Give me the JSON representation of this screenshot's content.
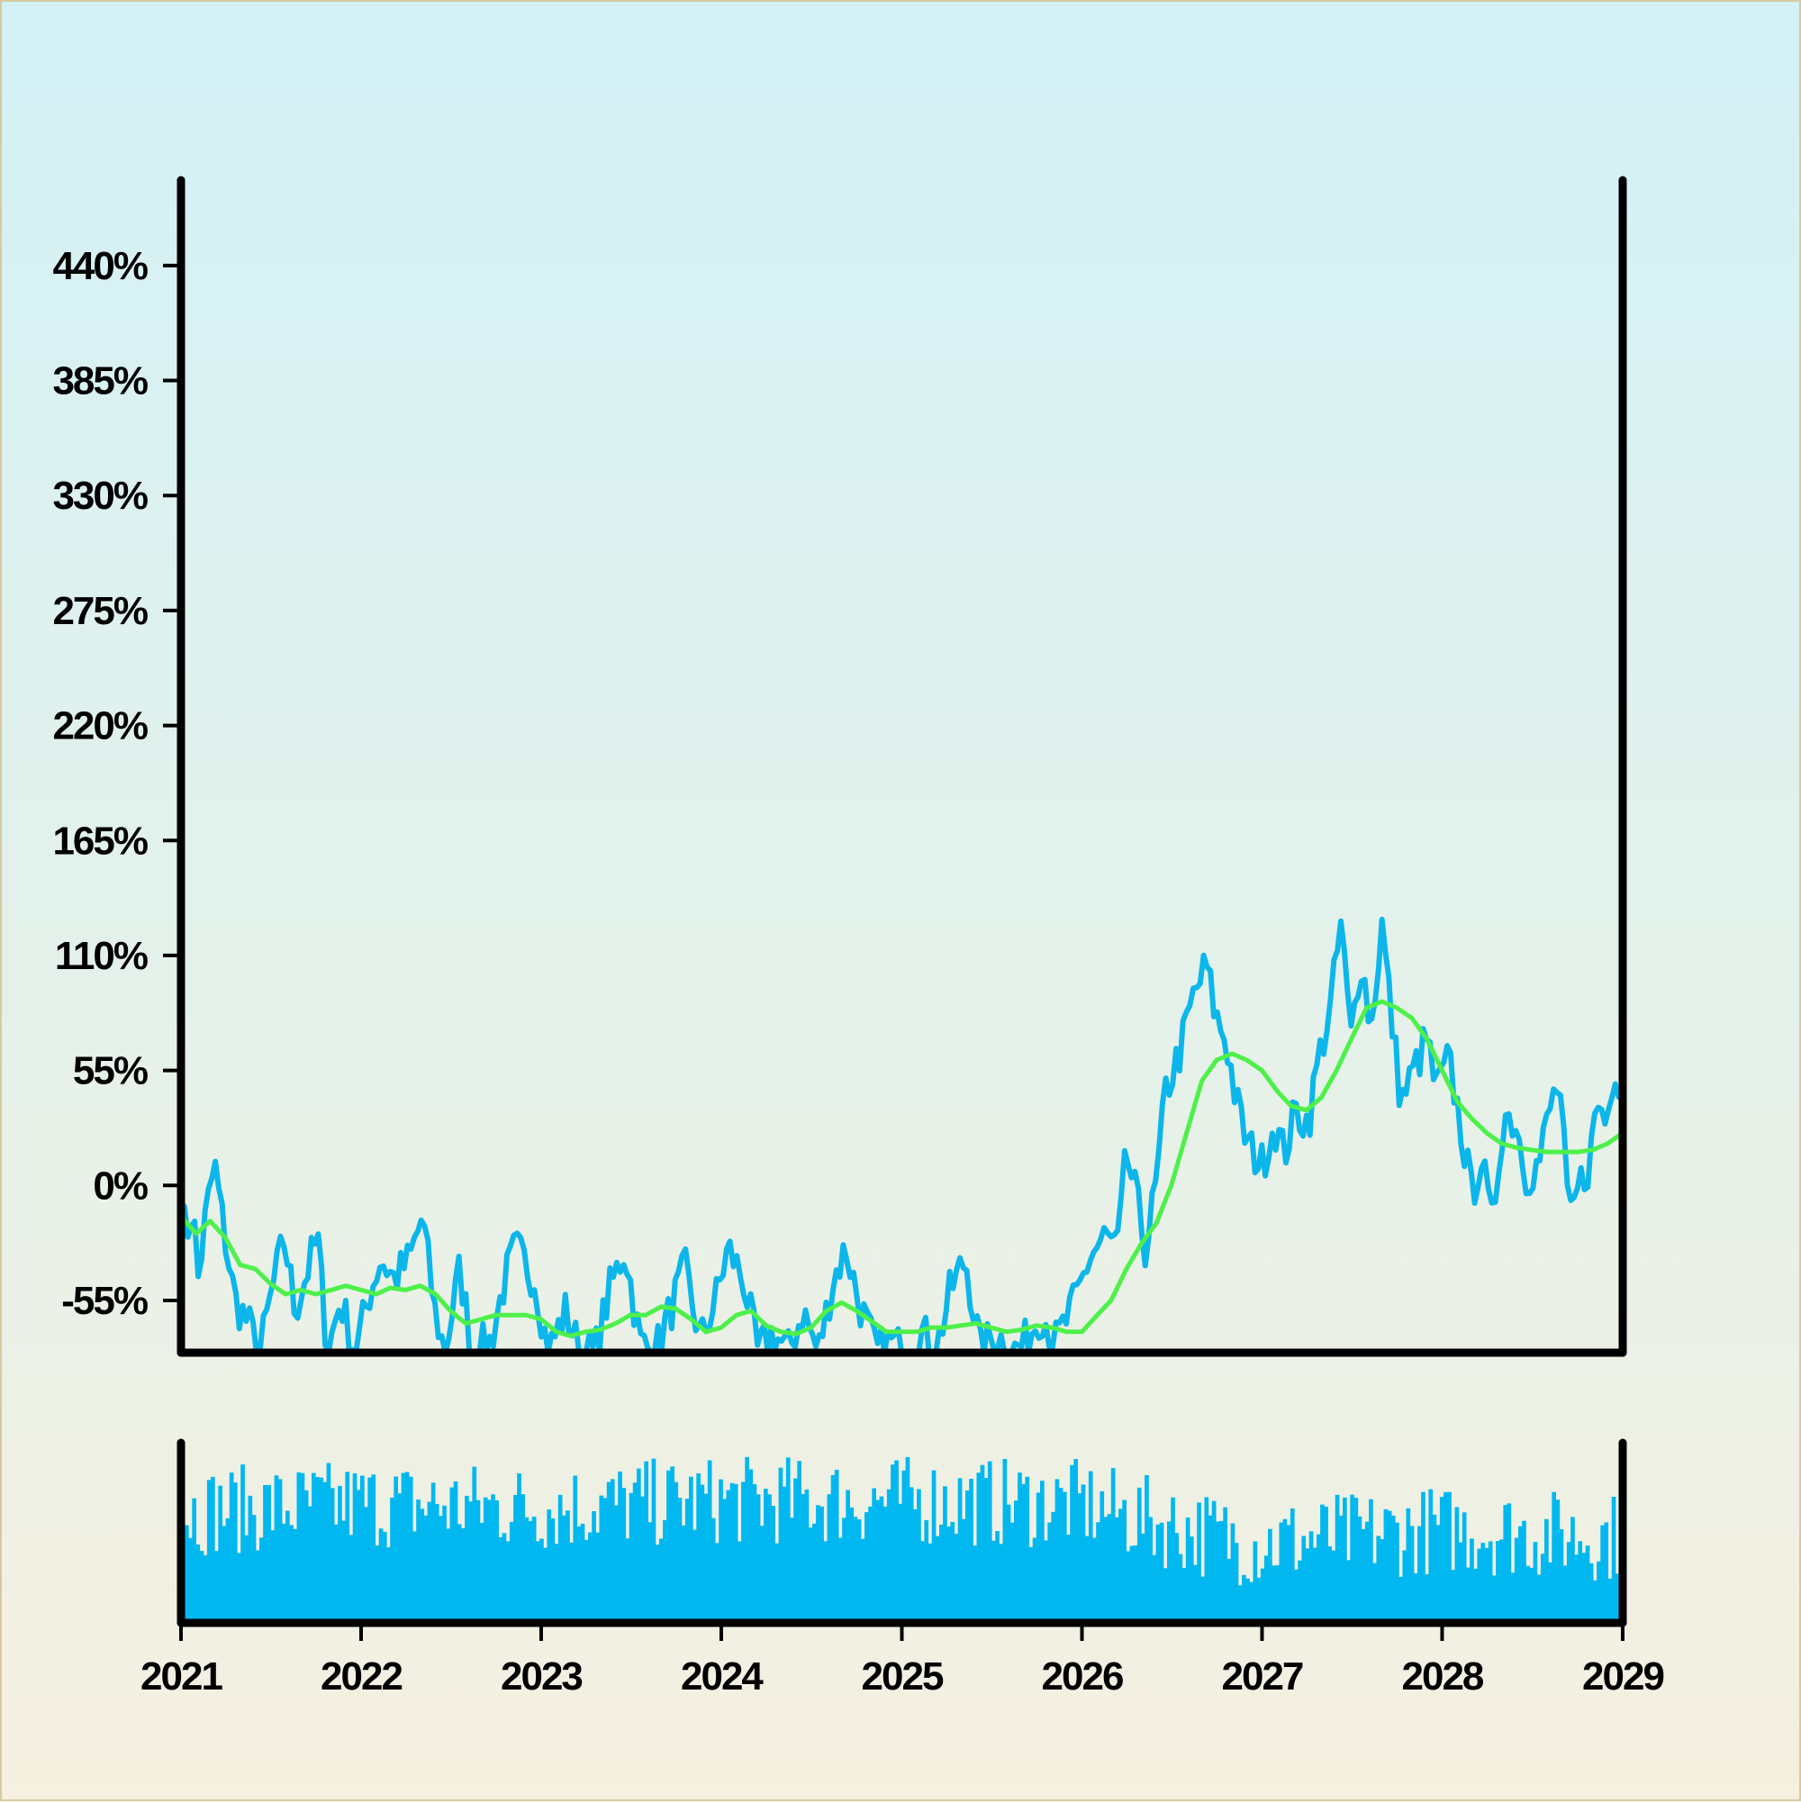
{
  "chart_data": {
    "type": "line",
    "title": "",
    "xlabel": "",
    "ylabel": "",
    "x_range": [
      "2021-01-01",
      "2029-01-01"
    ],
    "xticks": [
      "2021",
      "2022",
      "2023",
      "2024",
      "2025",
      "2026",
      "2027",
      "2028",
      "2029"
    ],
    "ylim": [
      -80,
      480
    ],
    "yticks": [
      -55,
      0,
      55,
      110,
      165,
      220,
      275,
      330,
      385,
      440
    ],
    "ytick_labels": [
      "-55%",
      "0%",
      "55%",
      "110%",
      "165%",
      "220%",
      "275%",
      "330%",
      "385%",
      "440%"
    ],
    "grid": false,
    "legend": "none",
    "colors": {
      "price": "#0cb6ea",
      "moving_average": "#4ef04a",
      "volume": "#00b8ef",
      "axes": "#000000"
    },
    "series": [
      {
        "role": "price",
        "keypoints": [
          [
            "2021-01-01",
            0
          ],
          [
            "2021-01-10",
            -25
          ],
          [
            "2021-01-25",
            -10
          ],
          [
            "2021-02-05",
            -45
          ],
          [
            "2021-02-20",
            -15
          ],
          [
            "2021-03-10",
            10
          ],
          [
            "2021-03-25",
            -15
          ],
          [
            "2021-04-20",
            -55
          ],
          [
            "2021-05-15",
            -65
          ],
          [
            "2021-06-10",
            -80
          ],
          [
            "2021-07-05",
            -50
          ],
          [
            "2021-07-30",
            -25
          ],
          [
            "2021-08-20",
            -60
          ],
          [
            "2021-09-15",
            -40
          ],
          [
            "2021-10-05",
            -25
          ],
          [
            "2021-10-25",
            -80
          ],
          [
            "2021-11-20",
            -55
          ],
          [
            "2021-12-20",
            -80
          ],
          [
            "2022-01-20",
            -50
          ],
          [
            "2022-02-10",
            -35
          ],
          [
            "2022-03-10",
            -45
          ],
          [
            "2022-04-10",
            -35
          ],
          [
            "2022-05-05",
            -15
          ],
          [
            "2022-05-30",
            -60
          ],
          [
            "2022-06-20",
            -80
          ],
          [
            "2022-07-20",
            -40
          ],
          [
            "2022-08-15",
            -80
          ],
          [
            "2022-09-20",
            -75
          ],
          [
            "2022-10-20",
            -45
          ],
          [
            "2022-11-10",
            -30
          ],
          [
            "2022-12-20",
            -45
          ],
          [
            "2023-01-15",
            -80
          ],
          [
            "2023-02-20",
            -60
          ],
          [
            "2023-03-20",
            -80
          ],
          [
            "2023-04-20",
            -80
          ],
          [
            "2023-05-20",
            -50
          ],
          [
            "2023-06-20",
            -30
          ],
          [
            "2023-07-20",
            -75
          ],
          [
            "2023-08-20",
            -80
          ],
          [
            "2023-09-20",
            -60
          ],
          [
            "2023-10-20",
            -40
          ],
          [
            "2023-11-20",
            -75
          ],
          [
            "2023-12-20",
            -55
          ],
          [
            "2024-01-15",
            -30
          ],
          [
            "2024-02-15",
            -45
          ],
          [
            "2024-03-15",
            -80
          ],
          [
            "2024-04-15",
            -70
          ],
          [
            "2024-05-15",
            -80
          ],
          [
            "2024-06-15",
            -60
          ],
          [
            "2024-07-15",
            -80
          ],
          [
            "2024-08-15",
            -45
          ],
          [
            "2024-09-10",
            -30
          ],
          [
            "2024-10-05",
            -55
          ],
          [
            "2024-11-10",
            -80
          ],
          [
            "2024-12-10",
            -75
          ],
          [
            "2025-01-10",
            -80
          ],
          [
            "2025-02-10",
            -70
          ],
          [
            "2025-03-10",
            -80
          ],
          [
            "2025-04-10",
            -50
          ],
          [
            "2025-05-10",
            -35
          ],
          [
            "2025-06-10",
            -80
          ],
          [
            "2025-07-10",
            -70
          ],
          [
            "2025-08-10",
            -80
          ],
          [
            "2025-09-10",
            -75
          ],
          [
            "2025-10-10",
            -60
          ],
          [
            "2025-11-10",
            -75
          ],
          [
            "2025-12-20",
            -55
          ],
          [
            "2026-01-15",
            -35
          ],
          [
            "2026-02-15",
            -25
          ],
          [
            "2026-03-15",
            -30
          ],
          [
            "2026-04-01",
            15
          ],
          [
            "2026-04-20",
            -5
          ],
          [
            "2026-05-10",
            -30
          ],
          [
            "2026-06-01",
            0
          ],
          [
            "2026-06-20",
            45
          ],
          [
            "2026-07-20",
            65
          ],
          [
            "2026-08-15",
            90
          ],
          [
            "2026-09-10",
            105
          ],
          [
            "2026-09-30",
            80
          ],
          [
            "2026-10-20",
            70
          ],
          [
            "2026-11-10",
            40
          ],
          [
            "2026-12-01",
            20
          ],
          [
            "2027-01-01",
            10
          ],
          [
            "2027-01-25",
            30
          ],
          [
            "2027-02-15",
            15
          ],
          [
            "2027-03-10",
            35
          ],
          [
            "2027-04-05",
            30
          ],
          [
            "2027-04-25",
            60
          ],
          [
            "2027-05-20",
            85
          ],
          [
            "2027-06-10",
            125
          ],
          [
            "2027-06-30",
            70
          ],
          [
            "2027-07-20",
            110
          ],
          [
            "2027-08-10",
            75
          ],
          [
            "2027-09-01",
            125
          ],
          [
            "2027-09-25",
            70
          ],
          [
            "2027-10-10",
            40
          ],
          [
            "2027-11-05",
            55
          ],
          [
            "2027-12-01",
            70
          ],
          [
            "2027-12-20",
            45
          ],
          [
            "2028-01-15",
            60
          ],
          [
            "2028-02-10",
            25
          ],
          [
            "2028-03-01",
            -5
          ],
          [
            "2028-03-20",
            15
          ],
          [
            "2028-04-10",
            -20
          ],
          [
            "2028-05-05",
            35
          ],
          [
            "2028-05-30",
            30
          ],
          [
            "2028-06-20",
            5
          ],
          [
            "2028-07-15",
            10
          ],
          [
            "2028-08-05",
            35
          ],
          [
            "2028-08-25",
            50
          ],
          [
            "2028-09-15",
            -20
          ],
          [
            "2028-10-05",
            0
          ],
          [
            "2028-10-25",
            10
          ],
          [
            "2028-11-10",
            40
          ],
          [
            "2028-11-30",
            30
          ],
          [
            "2028-12-15",
            60
          ],
          [
            "2028-12-31",
            45
          ]
        ]
      },
      {
        "role": "moving_average",
        "keypoints": [
          [
            "2021-01-01",
            -15
          ],
          [
            "2021-02-01",
            -23
          ],
          [
            "2021-03-01",
            -17
          ],
          [
            "2021-04-01",
            -25
          ],
          [
            "2021-05-01",
            -38
          ],
          [
            "2021-06-01",
            -40
          ],
          [
            "2021-07-01",
            -47
          ],
          [
            "2021-08-01",
            -52
          ],
          [
            "2021-09-01",
            -50
          ],
          [
            "2021-10-01",
            -52
          ],
          [
            "2021-11-01",
            -50
          ],
          [
            "2021-12-01",
            -48
          ],
          [
            "2022-01-01",
            -50
          ],
          [
            "2022-02-01",
            -52
          ],
          [
            "2022-03-01",
            -49
          ],
          [
            "2022-04-01",
            -50
          ],
          [
            "2022-05-01",
            -48
          ],
          [
            "2022-06-01",
            -52
          ],
          [
            "2022-07-01",
            -60
          ],
          [
            "2022-08-01",
            -66
          ],
          [
            "2022-09-01",
            -64
          ],
          [
            "2022-10-01",
            -62
          ],
          [
            "2022-11-01",
            -62
          ],
          [
            "2022-12-01",
            -62
          ],
          [
            "2023-01-01",
            -64
          ],
          [
            "2023-02-01",
            -70
          ],
          [
            "2023-03-01",
            -72
          ],
          [
            "2023-04-01",
            -70
          ],
          [
            "2023-05-01",
            -69
          ],
          [
            "2023-06-01",
            -66
          ],
          [
            "2023-07-01",
            -62
          ],
          [
            "2023-08-01",
            -62
          ],
          [
            "2023-09-01",
            -58
          ],
          [
            "2023-10-01",
            -59
          ],
          [
            "2023-11-01",
            -64
          ],
          [
            "2023-12-01",
            -70
          ],
          [
            "2024-01-01",
            -68
          ],
          [
            "2024-02-01",
            -62
          ],
          [
            "2024-03-01",
            -60
          ],
          [
            "2024-04-01",
            -67
          ],
          [
            "2024-05-01",
            -70
          ],
          [
            "2024-06-01",
            -71
          ],
          [
            "2024-07-01",
            -68
          ],
          [
            "2024-08-01",
            -60
          ],
          [
            "2024-09-01",
            -56
          ],
          [
            "2024-10-01",
            -60
          ],
          [
            "2024-11-01",
            -65
          ],
          [
            "2024-12-01",
            -70
          ],
          [
            "2025-01-01",
            -70
          ],
          [
            "2025-02-01",
            -70
          ],
          [
            "2025-03-01",
            -68
          ],
          [
            "2025-04-01",
            -68
          ],
          [
            "2025-05-01",
            -67
          ],
          [
            "2025-06-01",
            -66
          ],
          [
            "2025-07-01",
            -68
          ],
          [
            "2025-08-01",
            -70
          ],
          [
            "2025-09-01",
            -69
          ],
          [
            "2025-10-01",
            -67
          ],
          [
            "2025-11-01",
            -68
          ],
          [
            "2025-12-01",
            -70
          ],
          [
            "2026-01-01",
            -70
          ],
          [
            "2026-02-01",
            -62
          ],
          [
            "2026-03-01",
            -55
          ],
          [
            "2026-04-01",
            -40
          ],
          [
            "2026-05-01",
            -28
          ],
          [
            "2026-06-01",
            -18
          ],
          [
            "2026-07-01",
            0
          ],
          [
            "2026-08-01",
            25
          ],
          [
            "2026-09-01",
            50
          ],
          [
            "2026-10-01",
            60
          ],
          [
            "2026-11-01",
            63
          ],
          [
            "2026-12-01",
            60
          ],
          [
            "2027-01-01",
            55
          ],
          [
            "2027-02-01",
            45
          ],
          [
            "2027-03-01",
            38
          ],
          [
            "2027-04-01",
            36
          ],
          [
            "2027-05-01",
            42
          ],
          [
            "2027-06-01",
            55
          ],
          [
            "2027-07-01",
            70
          ],
          [
            "2027-08-01",
            85
          ],
          [
            "2027-09-01",
            88
          ],
          [
            "2027-10-01",
            85
          ],
          [
            "2027-11-01",
            80
          ],
          [
            "2027-12-01",
            70
          ],
          [
            "2028-01-01",
            55
          ],
          [
            "2028-02-01",
            40
          ],
          [
            "2028-03-01",
            32
          ],
          [
            "2028-04-01",
            25
          ],
          [
            "2028-05-01",
            20
          ],
          [
            "2028-06-01",
            18
          ],
          [
            "2028-07-01",
            17
          ],
          [
            "2028-08-01",
            16
          ],
          [
            "2028-09-01",
            16
          ],
          [
            "2028-10-01",
            16
          ],
          [
            "2028-11-01",
            17
          ],
          [
            "2028-12-01",
            20
          ],
          [
            "2028-12-31",
            25
          ]
        ]
      },
      {
        "role": "volume",
        "type": "bar",
        "bars_per_year": 48,
        "level_profile": [
          [
            "2021",
            0.62
          ],
          [
            "2022",
            0.66
          ],
          [
            "2023",
            0.64
          ],
          [
            "2024",
            0.68
          ],
          [
            "2025",
            0.68
          ],
          [
            "2026",
            0.66
          ],
          [
            "2026-10",
            0.48
          ],
          [
            "2027",
            0.44
          ],
          [
            "2028",
            0.52
          ],
          [
            "2028-12",
            0.48
          ]
        ]
      }
    ]
  }
}
